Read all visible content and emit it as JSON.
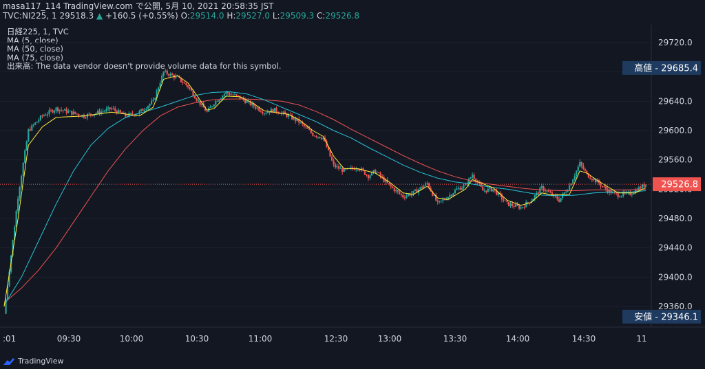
{
  "header": {
    "line1": "masa117_114 TradingView.com で公開, 5月 10, 2021 20:58:35 JST",
    "symbol": "TVC:NI225, 1",
    "last": "29518.3",
    "change": "+160.5 (+0.55%)",
    "open_label": "O:",
    "open": "29514.0",
    "high_label": "H:",
    "high": "29527.0",
    "low_label": "L:",
    "low": "29509.3",
    "close_label": "C:",
    "close": "29526.8"
  },
  "legend": {
    "title": "日経225, 1, TVC",
    "ma5": "MA (5, close)",
    "ma50": "MA (50, close)",
    "ma75": "MA (75, close)",
    "volume": "出来高: The data vendor doesn't provide volume data for this symbol."
  },
  "footer": {
    "brand": "TradingView"
  },
  "colors": {
    "up": "#26a69a",
    "down": "#ef5350",
    "ma5": "#ffeb3b",
    "ma50": "#26c6da",
    "ma75": "#ef5350",
    "background": "#131722"
  },
  "chart_data": {
    "type": "candlestick",
    "y_axis": {
      "ticks": [
        29360,
        29400,
        29440,
        29480,
        29520,
        29560,
        29600,
        29640,
        29680,
        29720
      ],
      "range": [
        29340,
        29740
      ]
    },
    "x_axis": {
      "ticks": [
        ":01",
        "09:30",
        "10:00",
        "10:30",
        "11:00",
        "12:30",
        "13:00",
        "13:30",
        "14:00",
        "14:30",
        "11"
      ]
    },
    "badges": [
      {
        "label": "高値",
        "value": "29685.4"
      },
      {
        "label": "",
        "value": "29526.8"
      },
      {
        "label": "安値",
        "value": "29346.1"
      }
    ],
    "price_path": {
      "times": [
        0,
        8,
        14,
        22,
        30,
        38,
        46,
        55,
        62,
        70,
        78,
        86,
        92,
        100,
        106,
        112,
        117,
        121,
        128,
        136,
        143,
        150,
        156,
        164,
        170,
        178,
        184,
        190,
        196,
        204,
        210,
        214,
        222,
        230,
        236,
        244,
        250,
        256,
        261,
        266,
        270,
        276,
        282,
        290,
        298,
        304,
        310,
        316,
        320,
        326,
        332,
        336,
        342,
        348,
        354,
        361,
        364,
        370
      ],
      "values": [
        29350,
        29510,
        29600,
        29620,
        29630,
        29625,
        29620,
        29625,
        29630,
        29620,
        29625,
        29640,
        29680,
        29672,
        29660,
        29640,
        29625,
        29638,
        29652,
        29645,
        29635,
        29625,
        29628,
        29620,
        29612,
        29595,
        29590,
        29552,
        29545,
        29550,
        29538,
        29545,
        29525,
        29510,
        29515,
        29528,
        29500,
        29510,
        29520,
        29525,
        29540,
        29518,
        29520,
        29500,
        29495,
        29505,
        29522,
        29512,
        29505,
        29525,
        29555,
        29540,
        29530,
        29518,
        29512,
        29514,
        29518,
        29527
      ]
    },
    "ma5_path": {
      "times": [
        0,
        8,
        14,
        22,
        30,
        46,
        62,
        78,
        86,
        92,
        100,
        106,
        112,
        117,
        121,
        128,
        136,
        143,
        150,
        164,
        170,
        178,
        184,
        190,
        196,
        204,
        214,
        222,
        230,
        236,
        244,
        250,
        256,
        266,
        270,
        282,
        290,
        298,
        304,
        310,
        316,
        326,
        332,
        336,
        342,
        354,
        364,
        370
      ],
      "values": [
        29360,
        29480,
        29580,
        29605,
        29618,
        29620,
        29625,
        29620,
        29632,
        29670,
        29675,
        29665,
        29645,
        29628,
        29630,
        29647,
        29646,
        29638,
        29627,
        29622,
        29615,
        29600,
        29592,
        29565,
        29548,
        29548,
        29542,
        29530,
        29515,
        29513,
        29524,
        29508,
        29506,
        29520,
        29533,
        29522,
        29505,
        29498,
        29502,
        29515,
        29512,
        29513,
        29545,
        29542,
        29532,
        29515,
        29515,
        29522
      ]
    },
    "ma50_path": {
      "times": [
        0,
        10,
        20,
        30,
        40,
        50,
        60,
        70,
        80,
        90,
        100,
        110,
        120,
        130,
        140,
        150,
        160,
        170,
        180,
        190,
        200,
        210,
        220,
        230,
        240,
        250,
        260,
        270,
        280,
        290,
        300,
        310,
        320,
        330,
        340,
        350,
        360,
        370
      ],
      "values": [
        29362,
        29400,
        29450,
        29500,
        29545,
        29580,
        29603,
        29618,
        29625,
        29632,
        29640,
        29648,
        29652,
        29653,
        29650,
        29642,
        29632,
        29622,
        29612,
        29600,
        29590,
        29577,
        29565,
        29553,
        29543,
        29535,
        29530,
        29527,
        29523,
        29520,
        29516,
        29512,
        29511,
        29512,
        29515,
        29516,
        29516,
        29518
      ]
    },
    "ma75_path": {
      "times": [
        0,
        10,
        20,
        30,
        40,
        50,
        60,
        70,
        80,
        90,
        100,
        110,
        120,
        130,
        140,
        150,
        160,
        170,
        180,
        190,
        200,
        210,
        220,
        230,
        240,
        250,
        260,
        270,
        280,
        290,
        300,
        310,
        320,
        330,
        340,
        350,
        360,
        370
      ],
      "values": [
        29365,
        29385,
        29410,
        29440,
        29475,
        29510,
        29545,
        29575,
        29600,
        29620,
        29632,
        29638,
        29642,
        29643,
        29643,
        29642,
        29640,
        29635,
        29626,
        29615,
        29602,
        29590,
        29578,
        29566,
        29555,
        29545,
        29537,
        29531,
        29527,
        29524,
        29521,
        29519,
        29518,
        29518,
        29519,
        29519,
        29519,
        29520
      ]
    }
  }
}
